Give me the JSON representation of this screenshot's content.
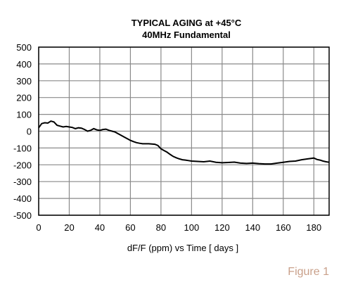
{
  "chart_data": {
    "type": "line",
    "title": "TYPICAL  AGING at +45°C",
    "subtitle": "40MHz Fundamental",
    "xlabel": "dF/F (ppm)  vs  Time [ days  ]",
    "ylabel": "",
    "xlim": [
      0,
      190
    ],
    "ylim": [
      -500,
      500
    ],
    "xticks": [
      0,
      20,
      40,
      60,
      80,
      100,
      120,
      140,
      160,
      180
    ],
    "yticks": [
      500,
      400,
      300,
      200,
      100,
      0,
      -100,
      -200,
      -300,
      -400,
      -500
    ],
    "grid": true,
    "series": [
      {
        "x": [
          0,
          2,
          4,
          6,
          8,
          10,
          12,
          14,
          16,
          18,
          20,
          22,
          24,
          26,
          28,
          30,
          32,
          34,
          36,
          38,
          40,
          42,
          44,
          46,
          48,
          50,
          52,
          54,
          56,
          58,
          60,
          62,
          64,
          66,
          68,
          70,
          72,
          74,
          76,
          78,
          80,
          82,
          84,
          86,
          88,
          90,
          92,
          94,
          96,
          98,
          100,
          104,
          108,
          112,
          116,
          120,
          124,
          128,
          132,
          136,
          140,
          144,
          148,
          152,
          156,
          160,
          164,
          168,
          172,
          176,
          180,
          182,
          184,
          186,
          188,
          190
        ],
        "y": [
          20,
          45,
          50,
          48,
          60,
          55,
          35,
          30,
          25,
          28,
          25,
          22,
          15,
          20,
          18,
          10,
          0,
          5,
          15,
          8,
          5,
          10,
          12,
          5,
          0,
          -5,
          -15,
          -25,
          -35,
          -45,
          -55,
          -62,
          -68,
          -72,
          -75,
          -75,
          -75,
          -76,
          -78,
          -85,
          -105,
          -115,
          -125,
          -138,
          -150,
          -158,
          -165,
          -170,
          -172,
          -175,
          -178,
          -180,
          -182,
          -178,
          -185,
          -188,
          -186,
          -184,
          -190,
          -192,
          -190,
          -193,
          -195,
          -195,
          -190,
          -185,
          -180,
          -178,
          -170,
          -165,
          -160,
          -168,
          -172,
          -178,
          -182,
          -185
        ]
      }
    ]
  },
  "figure_label": "Figure 1",
  "colors": {
    "line": "#000000",
    "grid": "#8a8a8a",
    "frame": "#000000",
    "figure_label": "#c9a08a"
  }
}
